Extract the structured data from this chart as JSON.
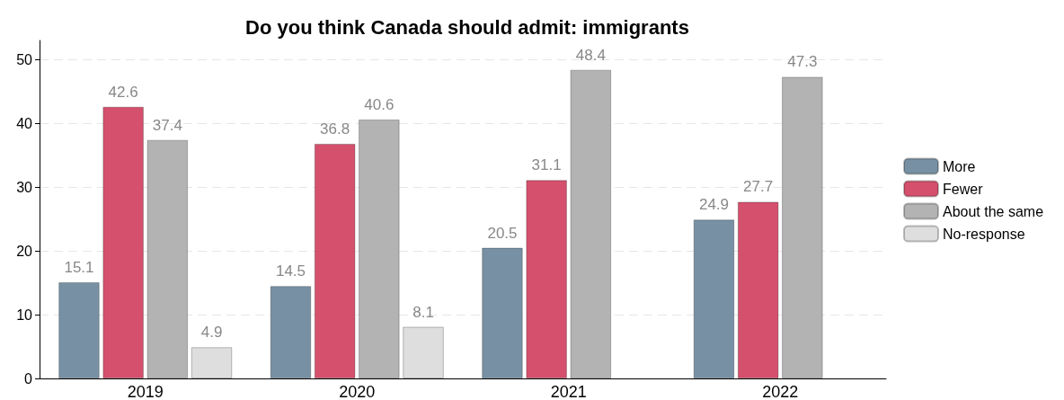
{
  "chart_data": {
    "type": "bar",
    "title": "Do you think Canada should admit: immigrants",
    "categories": [
      "2019",
      "2020",
      "2021",
      "2022"
    ],
    "series": [
      {
        "name": "More",
        "color": "#7790a4",
        "values": [
          15.1,
          14.5,
          20.5,
          24.9
        ]
      },
      {
        "name": "Fewer",
        "color": "#d4506d",
        "values": [
          42.6,
          36.8,
          31.1,
          27.7
        ]
      },
      {
        "name": "About the same",
        "color": "#b3b3b3",
        "values": [
          37.4,
          40.6,
          48.4,
          47.3
        ]
      },
      {
        "name": "No-response",
        "color": "#dedede",
        "values": [
          4.9,
          8.1,
          null,
          null
        ]
      }
    ],
    "ylim": [
      0,
      53
    ],
    "yticks": [
      0,
      10,
      20,
      30,
      40,
      50
    ],
    "grid": "y",
    "legend": "right",
    "data_labels": true
  }
}
